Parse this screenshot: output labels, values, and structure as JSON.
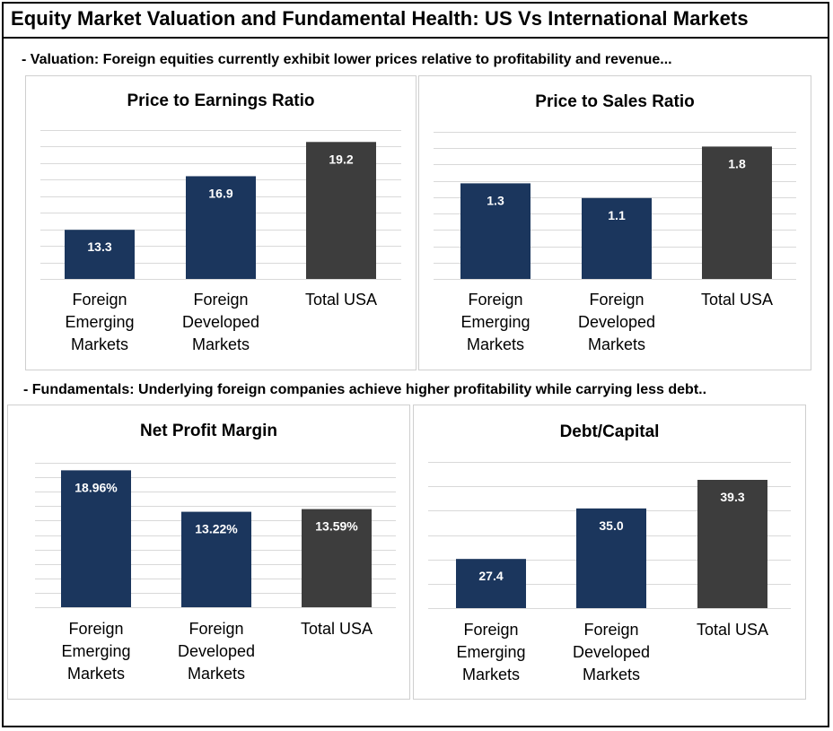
{
  "page": {
    "title": "Equity Market Valuation and Fundamental Health: US Vs International Markets",
    "valuation_caption": "- Valuation: Foreign equities currently exhibit lower prices relative to profitability and revenue...",
    "fundamentals_caption": "- Fundamentals: Underlying foreign companies achieve higher profitability while carrying less debt.."
  },
  "colors": {
    "foreign": "#1b365d",
    "usa": "#3d3d3d",
    "grid": "#d9d9d9",
    "label": "#ffffff"
  },
  "chart_data": [
    {
      "type": "bar",
      "title": "Price to Earnings Ratio",
      "categories": [
        "Foreign Emerging Markets",
        "Foreign Developed Markets",
        "Total USA"
      ],
      "category_lines": [
        [
          "Foreign",
          "Emerging",
          "Markets"
        ],
        [
          "Foreign",
          "Developed",
          "Markets"
        ],
        [
          "Total USA"
        ]
      ],
      "values": [
        13.3,
        16.9,
        19.2
      ],
      "data_labels": [
        "13.3",
        "16.9",
        "19.2"
      ],
      "ylim": [
        10,
        20
      ],
      "grid": true,
      "xlabel": "",
      "ylabel": ""
    },
    {
      "type": "bar",
      "title": "Price to Sales Ratio",
      "categories": [
        "Foreign Emerging Markets",
        "Foreign Developed Markets",
        "Total USA"
      ],
      "category_lines": [
        [
          "Foreign",
          "Emerging",
          "Markets"
        ],
        [
          "Foreign",
          "Developed",
          "Markets"
        ],
        [
          "Total USA"
        ]
      ],
      "values": [
        1.3,
        1.1,
        1.8
      ],
      "data_labels": [
        "1.3",
        "1.1",
        "1.8"
      ],
      "ylim": [
        0,
        2
      ],
      "grid": true,
      "xlabel": "",
      "ylabel": ""
    },
    {
      "type": "bar",
      "title": "Net  Profit Margin",
      "categories": [
        "Foreign Emerging Markets",
        "Foreign Developed Markets",
        "Total USA"
      ],
      "category_lines": [
        [
          "Foreign",
          "Emerging",
          "Markets"
        ],
        [
          "Foreign",
          "Developed",
          "Markets"
        ],
        [
          "Total USA"
        ]
      ],
      "values": [
        18.96,
        13.22,
        13.59
      ],
      "data_labels": [
        "18.96%",
        "13.22%",
        "13.59%"
      ],
      "ylim": [
        0,
        20
      ],
      "grid": true,
      "xlabel": "",
      "ylabel": ""
    },
    {
      "type": "bar",
      "title": "Debt/Capital",
      "categories": [
        "Foreign Emerging Markets",
        "Foreign Developed Markets",
        "Total USA"
      ],
      "category_lines": [
        [
          "Foreign",
          "Emerging",
          "Markets"
        ],
        [
          "Foreign",
          "Developed",
          "Markets"
        ],
        [
          "Total USA"
        ]
      ],
      "values": [
        27.4,
        35.0,
        39.3
      ],
      "data_labels": [
        "27.4",
        "35.0",
        "39.3"
      ],
      "ylim": [
        20,
        42
      ],
      "grid": true,
      "xlabel": "",
      "ylabel": ""
    }
  ]
}
